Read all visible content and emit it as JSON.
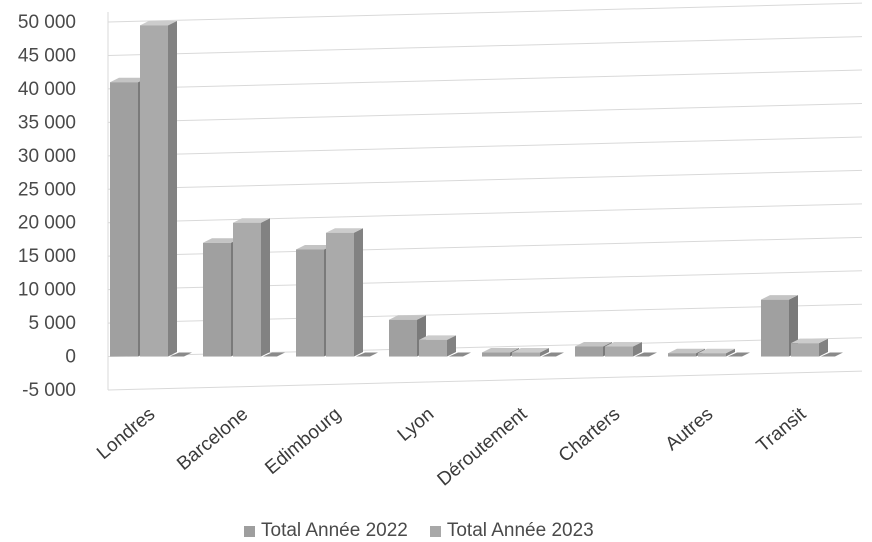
{
  "chart_data": {
    "type": "bar",
    "categories": [
      "Londres",
      "Barcelone",
      "Edimbourg",
      "Lyon",
      "Déroutement",
      "Charters",
      "Autres",
      "Transit"
    ],
    "series": [
      {
        "name": "Total Année 2022",
        "values": [
          41000,
          17000,
          16000,
          5500,
          600,
          1500,
          500,
          8500
        ],
        "color": "#9e9e9e"
      },
      {
        "name": "Total Année 2023",
        "values": [
          49500,
          20000,
          18500,
          2500,
          600,
          1500,
          500,
          2000
        ],
        "color": "#a8a8a8"
      }
    ],
    "ylim": [
      -5000,
      50000
    ],
    "yticks": [
      -5000,
      0,
      5000,
      10000,
      15000,
      20000,
      25000,
      30000,
      35000,
      40000,
      45000,
      50000
    ],
    "ytick_labels": [
      "-5 000",
      "0",
      "5 000",
      "10 000",
      "15 000",
      "20 000",
      "25 000",
      "30 000",
      "35 000",
      "40 000",
      "45 000",
      "50 000"
    ],
    "grid": true,
    "legend_position": "bottom"
  }
}
